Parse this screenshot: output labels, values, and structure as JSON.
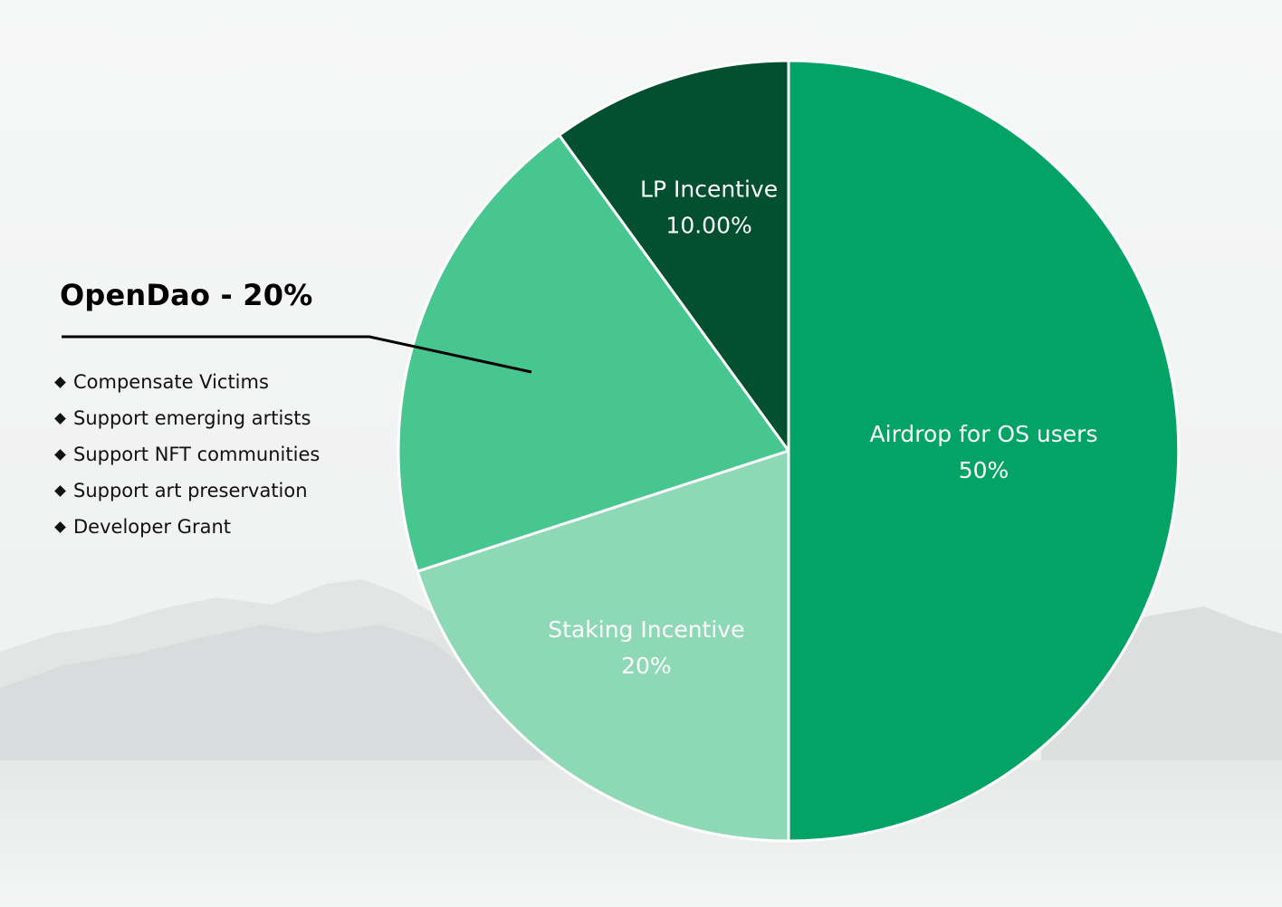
{
  "chart_data": {
    "type": "pie",
    "slices": [
      {
        "label": "Airdrop for OS users",
        "value": 50,
        "value_label": "50%",
        "color": "#02a365"
      },
      {
        "label": "Staking Incentive",
        "value": 20,
        "value_label": "20%",
        "color": "#8ed9b5"
      },
      {
        "label": "",
        "value": 20,
        "value_label": "",
        "color": "#48c68f"
      },
      {
        "label": "LP Incentive",
        "value": 10,
        "value_label": "10.00%",
        "color": "#025030"
      }
    ],
    "start": "12 o'clock",
    "direction": "clockwise",
    "slice_separator_color": "#ffffff"
  },
  "callout": {
    "title": "OpenDao - 20%",
    "items": [
      "Compensate Victims",
      "Support emerging artists",
      "Support NFT communities",
      "Support art preservation",
      "Developer Grant"
    ]
  }
}
